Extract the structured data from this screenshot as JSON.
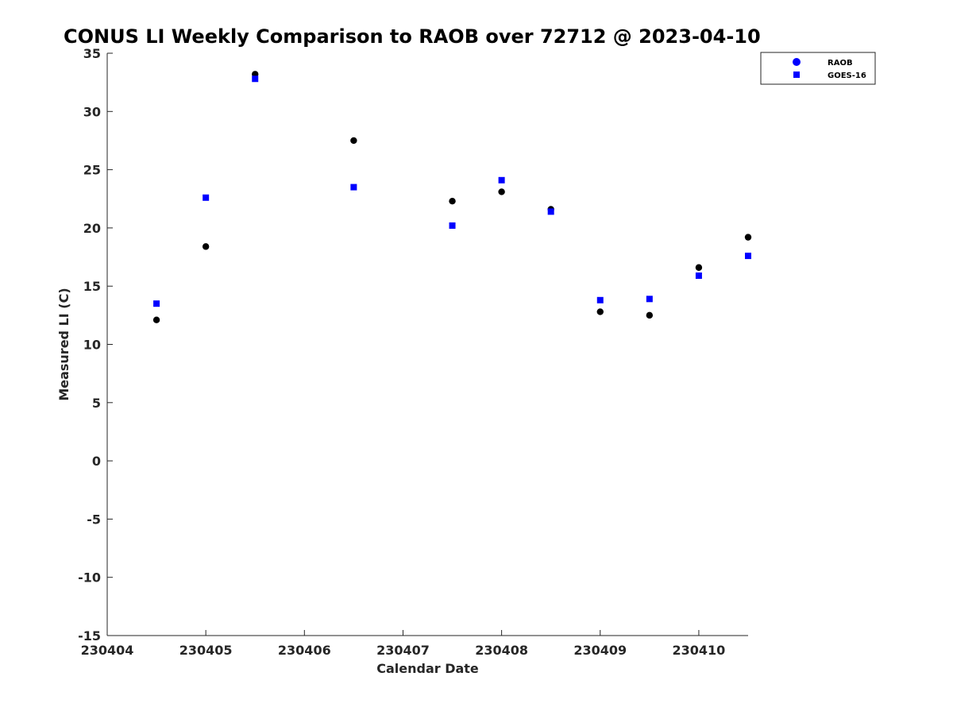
{
  "chart_data": {
    "type": "scatter",
    "title": "CONUS LI Weekly Comparison to RAOB over 72712 @ 2023-04-10",
    "xlabel": "Calendar Date",
    "ylabel": "Measured LI (C)",
    "xlim": [
      230404,
      230410.5
    ],
    "ylim": [
      -15,
      35
    ],
    "xticks": [
      230404,
      230405,
      230406,
      230407,
      230408,
      230409,
      230410
    ],
    "xtick_labels": [
      "230404",
      "230405",
      "230406",
      "230407",
      "230408",
      "230409",
      "230410"
    ],
    "yticks": [
      -15,
      -10,
      -5,
      0,
      5,
      10,
      15,
      20,
      25,
      30,
      35
    ],
    "ytick_labels": [
      "-15",
      "-10",
      "-5",
      "0",
      "5",
      "10",
      "15",
      "20",
      "25",
      "30",
      "35"
    ],
    "grid": false,
    "legend_position": "top-right",
    "series": [
      {
        "name": "RAOB",
        "marker": "circle",
        "color": "#000000",
        "legend_color": "#0000ff",
        "x": [
          230404.5,
          230405,
          230405.5,
          230406.5,
          230407.5,
          230408,
          230408.5,
          230409,
          230409.5,
          230410,
          230410.5
        ],
        "y": [
          12.1,
          18.4,
          33.2,
          27.5,
          22.3,
          23.1,
          21.6,
          12.8,
          12.5,
          16.6,
          19.2
        ]
      },
      {
        "name": "GOES-16",
        "marker": "square",
        "color": "#0000ff",
        "legend_color": "#0000ff",
        "x": [
          230404.5,
          230405,
          230405.5,
          230406.5,
          230407.5,
          230408,
          230408.5,
          230409,
          230409.5,
          230410,
          230410.5
        ],
        "y": [
          13.5,
          22.6,
          32.8,
          23.5,
          20.2,
          24.1,
          21.4,
          13.8,
          13.9,
          15.9,
          17.6
        ]
      }
    ]
  }
}
